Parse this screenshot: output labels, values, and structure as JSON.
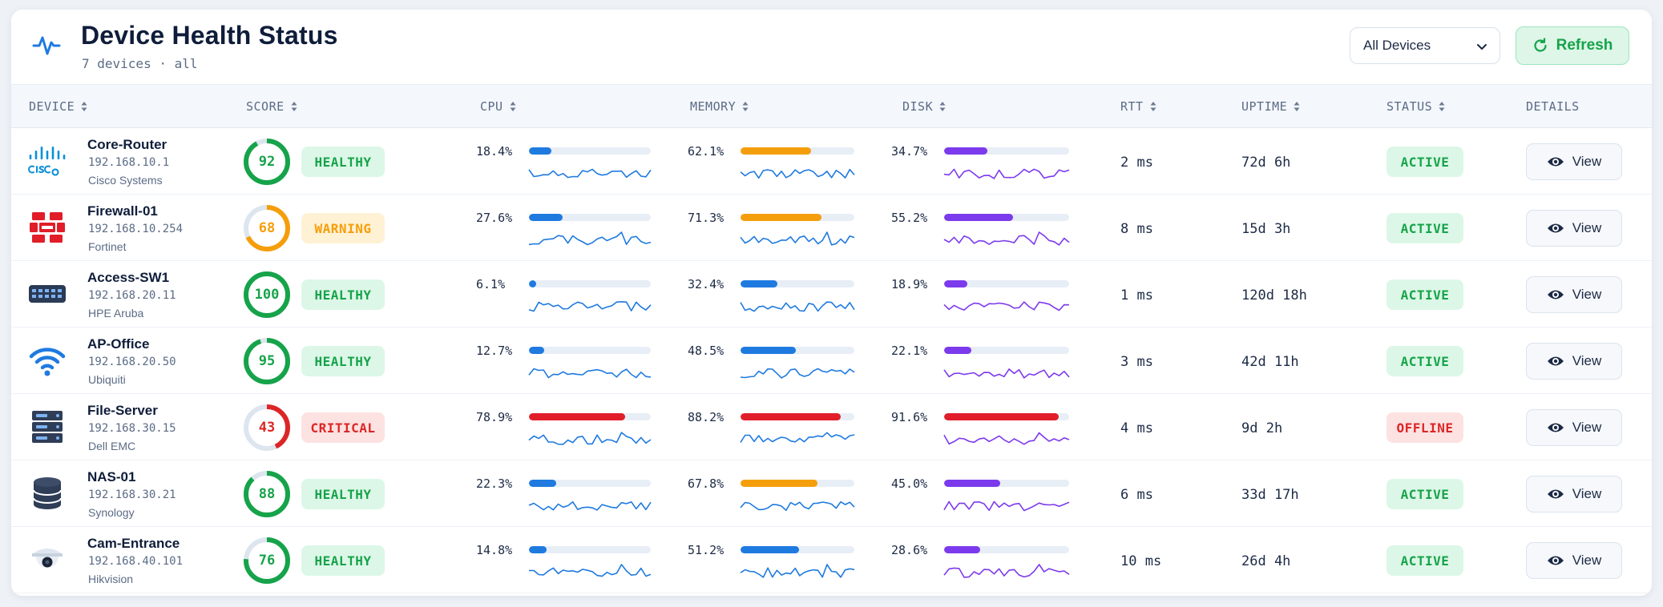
{
  "header": {
    "title": "Device Health Status",
    "subtitle": "7 devices · all",
    "filter_value": "All Devices",
    "refresh_label": "Refresh"
  },
  "columns": [
    "DEVICE",
    "SCORE",
    "CPU",
    "MEMORY",
    "DISK",
    "RTT",
    "UPTIME",
    "STATUS",
    "DETAILS"
  ],
  "colors": {
    "healthy": "#16a34a",
    "warning": "#f59e0b",
    "critical": "#dc2626",
    "blue": "#1f7ae0",
    "orange": "#f59e0b",
    "red": "#e11d2a",
    "purple": "#7c3aed"
  },
  "view_label": "View",
  "devices": [
    {
      "name": "Core-Router",
      "ip": "192.168.10.1",
      "vendor": "Cisco Systems",
      "icon": "cisco-logo-icon",
      "score": "92",
      "score_pct": 92,
      "health": "HEALTHY",
      "health_level": "healthy",
      "cpu": "18.4%",
      "cpu_pct": 18.4,
      "cpu_color": "blue",
      "mem": "62.1%",
      "mem_pct": 62.1,
      "mem_color": "orange",
      "disk": "34.7%",
      "disk_pct": 34.7,
      "disk_color": "purple",
      "rtt": "2 ms",
      "uptime": "72d 6h",
      "status": "ACTIVE",
      "status_level": "active"
    },
    {
      "name": "Firewall-01",
      "ip": "192.168.10.254",
      "vendor": "Fortinet",
      "icon": "fortinet-logo-icon",
      "score": "68",
      "score_pct": 68,
      "health": "WARNING",
      "health_level": "warning",
      "cpu": "27.6%",
      "cpu_pct": 27.6,
      "cpu_color": "blue",
      "mem": "71.3%",
      "mem_pct": 71.3,
      "mem_color": "orange",
      "disk": "55.2%",
      "disk_pct": 55.2,
      "disk_color": "purple",
      "rtt": "8 ms",
      "uptime": "15d 3h",
      "status": "ACTIVE",
      "status_level": "active"
    },
    {
      "name": "Access-SW1",
      "ip": "192.168.20.11",
      "vendor": "HPE Aruba",
      "icon": "switch-icon",
      "score": "100",
      "score_pct": 100,
      "health": "HEALTHY",
      "health_level": "healthy",
      "cpu": "6.1%",
      "cpu_pct": 6.1,
      "cpu_color": "blue",
      "mem": "32.4%",
      "mem_pct": 32.4,
      "mem_color": "blue",
      "disk": "18.9%",
      "disk_pct": 18.9,
      "disk_color": "purple",
      "rtt": "1 ms",
      "uptime": "120d 18h",
      "status": "ACTIVE",
      "status_level": "active"
    },
    {
      "name": "AP-Office",
      "ip": "192.168.20.50",
      "vendor": "Ubiquiti",
      "icon": "wifi-icon",
      "score": "95",
      "score_pct": 95,
      "health": "HEALTHY",
      "health_level": "healthy",
      "cpu": "12.7%",
      "cpu_pct": 12.7,
      "cpu_color": "blue",
      "mem": "48.5%",
      "mem_pct": 48.5,
      "mem_color": "blue",
      "disk": "22.1%",
      "disk_pct": 22.1,
      "disk_color": "purple",
      "rtt": "3 ms",
      "uptime": "42d 11h",
      "status": "ACTIVE",
      "status_level": "active"
    },
    {
      "name": "File-Server",
      "ip": "192.168.30.15",
      "vendor": "Dell EMC",
      "icon": "server-icon",
      "score": "43",
      "score_pct": 43,
      "health": "CRITICAL",
      "health_level": "critical",
      "cpu": "78.9%",
      "cpu_pct": 78.9,
      "cpu_color": "red",
      "mem": "88.2%",
      "mem_pct": 88.2,
      "mem_color": "red",
      "disk": "91.6%",
      "disk_pct": 91.6,
      "disk_color": "red",
      "rtt": "4 ms",
      "uptime": "9d 2h",
      "status": "OFFLINE",
      "status_level": "offline"
    },
    {
      "name": "NAS-01",
      "ip": "192.168.30.21",
      "vendor": "Synology",
      "icon": "database-icon",
      "score": "88",
      "score_pct": 88,
      "health": "HEALTHY",
      "health_level": "healthy",
      "cpu": "22.3%",
      "cpu_pct": 22.3,
      "cpu_color": "blue",
      "mem": "67.8%",
      "mem_pct": 67.8,
      "mem_color": "orange",
      "disk": "45.0%",
      "disk_pct": 45.0,
      "disk_color": "purple",
      "rtt": "6 ms",
      "uptime": "33d 17h",
      "status": "ACTIVE",
      "status_level": "active"
    },
    {
      "name": "Cam-Entrance",
      "ip": "192.168.40.101",
      "vendor": "Hikvision",
      "icon": "camera-icon",
      "score": "76",
      "score_pct": 76,
      "health": "HEALTHY",
      "health_level": "healthy",
      "cpu": "14.8%",
      "cpu_pct": 14.8,
      "cpu_color": "blue",
      "mem": "51.2%",
      "mem_pct": 51.2,
      "mem_color": "blue",
      "disk": "28.6%",
      "disk_pct": 28.6,
      "disk_color": "purple",
      "rtt": "10 ms",
      "uptime": "26d 4h",
      "status": "ACTIVE",
      "status_level": "active"
    }
  ]
}
